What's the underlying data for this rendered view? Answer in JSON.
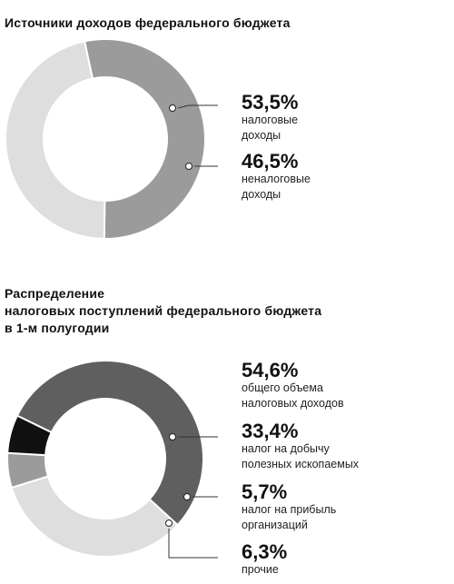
{
  "colors": {
    "dark_gray": "#5f5f5f",
    "mid_gray": "#9b9b9b",
    "light_gray": "#dedede",
    "black": "#111111",
    "leader": "#333333"
  },
  "chart_data": [
    {
      "type": "pie",
      "title": "Источники доходов федерального бюджета",
      "slices": [
        {
          "label_line1": "налоговые",
          "label_line2": "доходы",
          "pct_text": "53,5%",
          "value": 53.5,
          "color": "#9b9b9b"
        },
        {
          "label_line1": "неналоговые",
          "label_line2": "доходы",
          "pct_text": "46,5%",
          "value": 46.5,
          "color": "#dedede"
        }
      ]
    },
    {
      "type": "pie",
      "title_lines": [
        "Распределение",
        "налоговых поступлений федерального бюджета",
        "в 1-м полугодии"
      ],
      "slices": [
        {
          "label_line1": "общего объема",
          "label_line2": "налоговых доходов",
          "pct_text": "54,6%",
          "value": 54.6,
          "color": "#5f5f5f"
        },
        {
          "label_line1": "налог на добычу",
          "label_line2": "полезных ископаемых",
          "pct_text": "33,4%",
          "value": 33.4,
          "color": "#dedede"
        },
        {
          "label_line1": "налог на прибыль",
          "label_line2": "организаций",
          "pct_text": "5,7%",
          "value": 5.7,
          "color": "#9b9b9b"
        },
        {
          "label_line1": "прочие",
          "label_line2": "",
          "pct_text": "6,3%",
          "value": 6.3,
          "color": "#111111"
        }
      ]
    }
  ]
}
